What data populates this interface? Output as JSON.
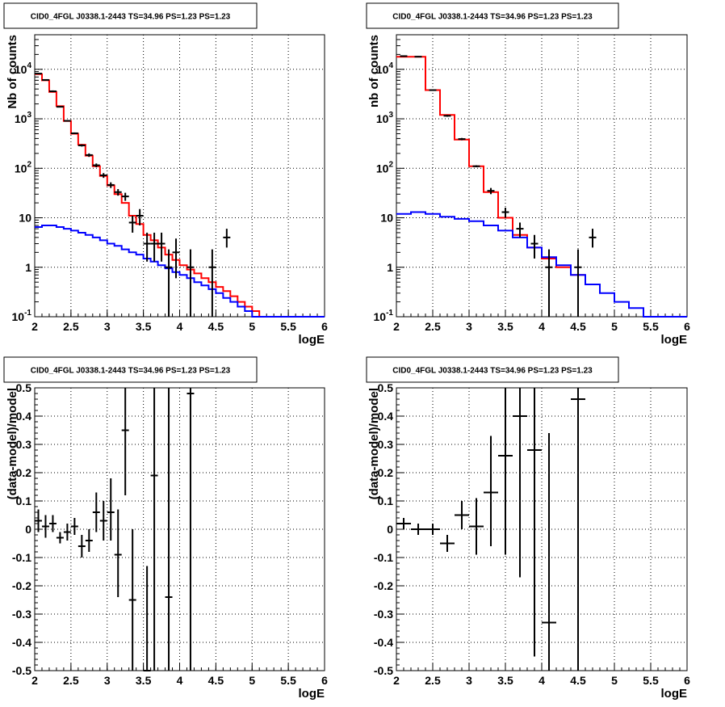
{
  "chart_data": [
    {
      "type": "line",
      "title": "CID0_4FGL J0338.1-2443 TS=34.96 PS=1.23 PS=1.23",
      "xlabel": "logE",
      "ylabel": "Nb of counts",
      "xlim": [
        2,
        6
      ],
      "ylim": [
        0.1,
        50000
      ],
      "log_y": true,
      "grid": true,
      "x_ticks": [
        "2",
        "2.5",
        "3",
        "3.5",
        "4",
        "4.5",
        "5",
        "5.5",
        "6"
      ],
      "y_ticks": [
        "10^-1",
        "1",
        "10",
        "10^2",
        "10^3",
        "10^4"
      ],
      "series": [
        {
          "color": "#ff0000",
          "style": "step",
          "bin_width": 0.1,
          "x": [
            2.05,
            2.15,
            2.25,
            2.35,
            2.45,
            2.55,
            2.65,
            2.75,
            2.85,
            2.95,
            3.05,
            3.15,
            3.25,
            3.35,
            3.45,
            3.55,
            3.65,
            3.75,
            3.85,
            3.95,
            4.05,
            4.15,
            4.25,
            4.35,
            4.45,
            4.55,
            4.65,
            4.75,
            4.85,
            4.95,
            5.05,
            5.15,
            5.25,
            5.35,
            5.45,
            5.55,
            5.65,
            5.75,
            5.85,
            5.95
          ],
          "values": [
            8000,
            6000,
            3500,
            1800,
            900,
            500,
            300,
            180,
            110,
            70,
            45,
            30,
            20,
            11,
            7.5,
            4.5,
            3.5,
            2.5,
            1.8,
            1.4,
            1.1,
            0.9,
            0.75,
            0.6,
            0.5,
            0.4,
            0.33,
            0.26,
            0.2,
            0.16,
            0.13,
            0.1,
            0.1,
            0.1,
            0.1,
            0.1,
            0.1,
            0.1,
            0.1,
            0.1
          ]
        },
        {
          "color": "#0000ff",
          "style": "step",
          "bin_width": 0.1,
          "x": [
            2.05,
            2.15,
            2.25,
            2.35,
            2.45,
            2.55,
            2.65,
            2.75,
            2.85,
            2.95,
            3.05,
            3.15,
            3.25,
            3.35,
            3.45,
            3.55,
            3.65,
            3.75,
            3.85,
            3.95,
            4.05,
            4.15,
            4.25,
            4.35,
            4.45,
            4.55,
            4.65,
            4.75,
            4.85,
            4.95,
            5.05,
            5.15,
            5.25,
            5.35,
            5.45,
            5.55,
            5.65,
            5.75,
            5.85,
            5.95
          ],
          "values": [
            6.5,
            7,
            7,
            6.5,
            6,
            5.5,
            5,
            4.5,
            4,
            3.5,
            3,
            2.7,
            2.3,
            2,
            1.8,
            1.5,
            1.3,
            1.1,
            0.95,
            0.8,
            0.7,
            0.6,
            0.5,
            0.43,
            0.36,
            0.3,
            0.24,
            0.2,
            0.16,
            0.13,
            0.1,
            0.1,
            0.1,
            0.1,
            0.1,
            0.1,
            0.1,
            0.1,
            0.1,
            0.1
          ]
        },
        {
          "color": "#000000",
          "style": "errorbar",
          "x": [
            2.05,
            2.15,
            2.25,
            2.35,
            2.45,
            2.55,
            2.65,
            2.75,
            2.85,
            2.95,
            3.05,
            3.15,
            3.25,
            3.35,
            3.45,
            3.55,
            3.65,
            3.75,
            3.85,
            3.95,
            4.15,
            4.45,
            4.65
          ],
          "values": [
            8200,
            6100,
            3600,
            1750,
            910,
            510,
            290,
            185,
            115,
            72,
            46,
            33,
            27,
            8,
            11,
            3,
            3,
            3,
            1,
            2,
            1,
            1,
            4
          ],
          "y_low": [
            8000,
            5900,
            3450,
            1700,
            880,
            490,
            275,
            170,
            105,
            64,
            40,
            28,
            22,
            5,
            7,
            1.3,
            1.3,
            1.3,
            0.1,
            0.6,
            0.1,
            0.1,
            2.5
          ],
          "y_high": [
            8400,
            6300,
            3750,
            1800,
            940,
            530,
            305,
            200,
            125,
            80,
            52,
            38,
            32,
            11,
            15,
            5,
            5,
            5,
            2.3,
            3.8,
            2.3,
            2.3,
            6
          ]
        }
      ]
    },
    {
      "type": "line",
      "title": "CID0_4FGL J0338.1-2443 TS=34.96 PS=1.23 PS=1.23",
      "xlabel": "logE",
      "ylabel": "nb of counts",
      "xlim": [
        2,
        6
      ],
      "ylim": [
        0.1,
        50000
      ],
      "log_y": true,
      "grid": true,
      "x_ticks": [
        "2",
        "2.5",
        "3",
        "3.5",
        "4",
        "4.5",
        "5",
        "5.5",
        "6"
      ],
      "y_ticks": [
        "10^-1",
        "1",
        "10",
        "10^2",
        "10^3",
        "10^4"
      ],
      "series": [
        {
          "color": "#ff0000",
          "style": "step",
          "bin_width": 0.2,
          "x": [
            2.1,
            2.3,
            2.5,
            2.7,
            2.9,
            3.1,
            3.3,
            3.5,
            3.7,
            3.9,
            4.1,
            4.3,
            4.5
          ],
          "values": [
            18000,
            18000,
            3800,
            1200,
            380,
            110,
            33,
            10,
            4.5,
            2.5,
            1.5,
            1,
            0.7
          ]
        },
        {
          "color": "#0000ff",
          "style": "step",
          "bin_width": 0.2,
          "x": [
            2.1,
            2.3,
            2.5,
            2.7,
            2.9,
            3.1,
            3.3,
            3.5,
            3.7,
            3.9,
            4.1,
            4.3,
            4.5,
            4.7,
            4.9,
            5.1,
            5.3,
            5.5,
            5.7,
            5.9
          ],
          "values": [
            12,
            13,
            12,
            10.5,
            9.5,
            8.5,
            7,
            5.5,
            4,
            2.5,
            1.6,
            1.1,
            0.7,
            0.45,
            0.3,
            0.2,
            0.15,
            0.1,
            0.1,
            0.1
          ]
        },
        {
          "color": "#000000",
          "style": "errorbar",
          "x": [
            2.1,
            2.3,
            2.5,
            2.7,
            2.9,
            3.1,
            3.3,
            3.5,
            3.7,
            3.9,
            4.1,
            4.5,
            4.7
          ],
          "values": [
            18500,
            18000,
            3800,
            1150,
            390,
            110,
            35,
            13,
            6,
            3,
            1,
            1,
            4
          ],
          "y_low": [
            18000,
            17500,
            3700,
            1100,
            370,
            105,
            30,
            10,
            4,
            1.5,
            0.1,
            0.1,
            2.5
          ],
          "y_high": [
            19000,
            18500,
            3900,
            1200,
            410,
            115,
            40,
            16,
            8,
            4.5,
            2.3,
            2.3,
            6
          ]
        }
      ]
    },
    {
      "type": "scatter",
      "title": "CID0_4FGL J0338.1-2443 TS=34.96 PS=1.23 PS=1.23",
      "xlabel": "logE",
      "ylabel": "(data-model)/model",
      "xlim": [
        2,
        6
      ],
      "ylim": [
        -0.5,
        0.5
      ],
      "grid": true,
      "x_ticks": [
        "2",
        "2.5",
        "3",
        "3.5",
        "4",
        "4.5",
        "5",
        "5.5",
        "6"
      ],
      "y_ticks": [
        "-0.5",
        "-0.4",
        "-0.3",
        "-0.2",
        "-0.1",
        "0",
        "0.1",
        "0.2",
        "0.3",
        "0.4",
        "0.5"
      ],
      "series": [
        {
          "color": "#000000",
          "style": "errorbar",
          "x_half_width": 0.05,
          "x": [
            2.05,
            2.15,
            2.25,
            2.35,
            2.45,
            2.55,
            2.65,
            2.75,
            2.85,
            2.95,
            3.05,
            3.15,
            3.25,
            3.35,
            3.55,
            3.65,
            3.85,
            4.15
          ],
          "values": [
            0.03,
            0.01,
            0.02,
            -0.03,
            -0.01,
            0.01,
            -0.06,
            -0.04,
            0.06,
            0.03,
            0.06,
            -0.09,
            0.35,
            -0.25,
            -0.5,
            0.19,
            -0.24,
            0.48
          ],
          "y_low": [
            -0.01,
            -0.03,
            -0.01,
            -0.05,
            -0.04,
            -0.02,
            -0.1,
            -0.08,
            -0.01,
            -0.04,
            -0.04,
            -0.24,
            0.12,
            -0.5,
            -0.5,
            -0.5,
            -0.5,
            -0.5
          ],
          "y_high": [
            0.07,
            0.05,
            0.05,
            -0.01,
            0.02,
            0.04,
            -0.02,
            0.0,
            0.13,
            0.1,
            0.18,
            0.07,
            0.5,
            0.0,
            -0.13,
            0.5,
            0.5,
            0.5
          ]
        }
      ]
    },
    {
      "type": "scatter",
      "title": "CID0_4FGL J0338.1-2443 TS=34.96 PS=1.23 PS=1.23",
      "xlabel": "logE",
      "ylabel": "(data-model)/model",
      "xlim": [
        2,
        6
      ],
      "ylim": [
        -0.5,
        0.5
      ],
      "grid": true,
      "x_ticks": [
        "2",
        "2.5",
        "3",
        "3.5",
        "4",
        "4.5",
        "5",
        "5.5",
        "6"
      ],
      "y_ticks": [
        "-0.5",
        "-0.4",
        "-0.3",
        "-0.2",
        "-0.1",
        "0",
        "0.1",
        "0.2",
        "0.3",
        "0.4",
        "0.5"
      ],
      "series": [
        {
          "color": "#000000",
          "style": "errorbar",
          "x_half_width": 0.1,
          "x": [
            2.1,
            2.3,
            2.5,
            2.7,
            2.9,
            3.1,
            3.3,
            3.5,
            3.7,
            3.9,
            4.1,
            4.5
          ],
          "values": [
            0.02,
            0.0,
            0.0,
            -0.05,
            0.05,
            0.01,
            0.13,
            0.26,
            0.4,
            0.28,
            -0.33,
            0.46
          ],
          "y_low": [
            0.0,
            -0.02,
            -0.02,
            -0.08,
            0.0,
            -0.09,
            -0.06,
            -0.09,
            -0.17,
            -0.45,
            -0.5,
            -0.5
          ],
          "y_high": [
            0.04,
            0.02,
            0.02,
            -0.02,
            0.1,
            0.11,
            0.33,
            0.5,
            0.5,
            0.5,
            0.34,
            0.5
          ]
        }
      ]
    }
  ]
}
